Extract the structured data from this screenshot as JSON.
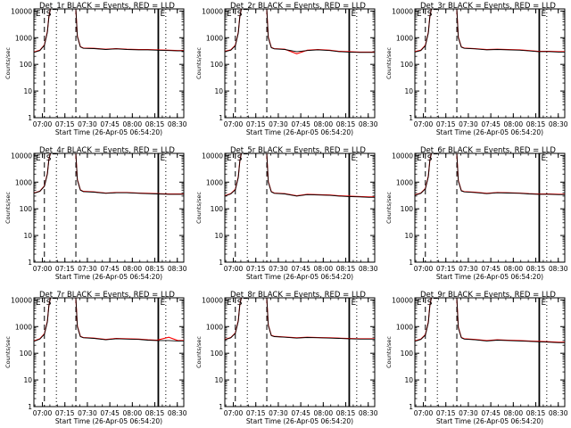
{
  "colors": {
    "background": "#ffffff",
    "axes": "#000000",
    "events": "#000000",
    "lld": "#ff0000"
  },
  "shared": {
    "ylabel": "Counts/sec",
    "xlabel": "Start Time (26-Apr-05 06:54:20)",
    "x_ticks": [
      "07:00",
      "07:15",
      "07:30",
      "07:45",
      "08:00",
      "08:15",
      "08:30"
    ],
    "y_ticks": [
      "1",
      "10",
      "100",
      "1000",
      "10000"
    ],
    "marker_labels": [
      "S",
      "E"
    ]
  },
  "chart_data": [
    {
      "type": "line",
      "title": "Det_1r BLACK = Events, RED = LLD",
      "ylim": [
        1,
        12000
      ],
      "y_scale": "log",
      "xlim_minutes": [
        0,
        100
      ],
      "x": [
        0,
        4,
        7,
        9,
        10,
        11,
        12,
        14,
        20,
        24,
        26,
        28,
        29,
        31,
        33,
        40,
        48,
        55,
        62,
        70,
        76,
        82,
        90,
        96,
        100
      ],
      "series": [
        {
          "name": "BLACK = Events",
          "values": [
            280,
            330,
            520,
            1600,
            6000,
            12000,
            12000,
            12000,
            12000,
            12000,
            12000,
            12000,
            1100,
            450,
            400,
            390,
            360,
            380,
            360,
            350,
            350,
            340,
            330,
            320,
            320
          ]
        },
        {
          "name": "RED = LLD",
          "values": [
            290,
            340,
            540,
            1700,
            6200,
            12000,
            12000,
            12000,
            12000,
            12000,
            12000,
            12000,
            1150,
            460,
            410,
            400,
            370,
            390,
            370,
            360,
            360,
            350,
            340,
            330,
            330
          ]
        }
      ],
      "markers": {
        "dashed": [
          7,
          28
        ],
        "dotted": [
          15,
          88
        ],
        "solid": [
          83
        ]
      }
    },
    {
      "type": "line",
      "title": "Det_2r BLACK = Events, RED = LLD",
      "ylim": [
        1,
        12000
      ],
      "y_scale": "log",
      "xlim_minutes": [
        0,
        100
      ],
      "x": [
        0,
        4,
        7,
        9,
        10,
        11,
        12,
        14,
        20,
        24,
        26,
        28,
        29,
        31,
        33,
        40,
        48,
        55,
        62,
        70,
        76,
        82,
        90,
        96,
        100
      ],
      "series": [
        {
          "name": "BLACK = Events",
          "values": [
            300,
            340,
            500,
            1500,
            6000,
            12000,
            12000,
            12000,
            12000,
            12000,
            12000,
            12000,
            1000,
            420,
            380,
            360,
            300,
            330,
            350,
            330,
            300,
            290,
            280,
            280,
            280
          ]
        },
        {
          "name": "RED = LLD",
          "values": [
            310,
            350,
            520,
            1600,
            6200,
            12000,
            12000,
            12000,
            12000,
            12000,
            12000,
            12000,
            1050,
            430,
            390,
            370,
            250,
            340,
            360,
            340,
            310,
            300,
            290,
            290,
            290
          ]
        }
      ],
      "markers": {
        "dashed": [
          7,
          28
        ],
        "dotted": [
          15,
          88
        ],
        "solid": [
          83
        ]
      }
    },
    {
      "type": "line",
      "title": "Det_3r BLACK = Events, RED = LLD",
      "ylim": [
        1,
        12000
      ],
      "y_scale": "log",
      "xlim_minutes": [
        0,
        100
      ],
      "x": [
        0,
        4,
        7,
        9,
        10,
        11,
        12,
        14,
        20,
        24,
        26,
        28,
        29,
        31,
        33,
        40,
        48,
        55,
        62,
        70,
        76,
        82,
        90,
        96,
        100
      ],
      "series": [
        {
          "name": "BLACK = Events",
          "values": [
            290,
            330,
            500,
            1500,
            6000,
            12000,
            12000,
            12000,
            12000,
            12000,
            12000,
            12000,
            1000,
            440,
            400,
            380,
            350,
            360,
            350,
            340,
            320,
            300,
            300,
            290,
            290
          ]
        },
        {
          "name": "RED = LLD",
          "values": [
            300,
            340,
            520,
            1600,
            6200,
            12000,
            12000,
            12000,
            12000,
            12000,
            12000,
            12000,
            1050,
            450,
            410,
            390,
            360,
            370,
            360,
            350,
            330,
            310,
            310,
            300,
            300
          ]
        }
      ],
      "markers": {
        "dashed": [
          7,
          28
        ],
        "dotted": [
          15,
          88
        ],
        "solid": [
          83
        ]
      }
    },
    {
      "type": "line",
      "title": "Det_4r BLACK = Events, RED = LLD",
      "ylim": [
        1,
        12000
      ],
      "y_scale": "log",
      "xlim_minutes": [
        0,
        100
      ],
      "x": [
        0,
        4,
        7,
        9,
        10,
        11,
        12,
        14,
        20,
        24,
        26,
        28,
        29,
        31,
        33,
        40,
        48,
        55,
        62,
        70,
        76,
        82,
        90,
        96,
        100
      ],
      "series": [
        {
          "name": "BLACK = Events",
          "values": [
            380,
            450,
            700,
            2000,
            7000,
            12000,
            12000,
            12000,
            12000,
            12000,
            12000,
            12000,
            1200,
            500,
            440,
            420,
            380,
            400,
            400,
            380,
            370,
            360,
            350,
            350,
            350
          ]
        },
        {
          "name": "RED = LLD",
          "values": [
            390,
            460,
            720,
            2100,
            7200,
            12000,
            12000,
            12000,
            12000,
            12000,
            12000,
            12000,
            1250,
            510,
            450,
            430,
            390,
            410,
            410,
            390,
            380,
            370,
            360,
            360,
            360
          ]
        }
      ],
      "markers": {
        "dashed": [
          7,
          28
        ],
        "dotted": [
          15,
          88
        ],
        "solid": [
          83
        ]
      }
    },
    {
      "type": "line",
      "title": "Det_5r BLACK = Events, RED = LLD",
      "ylim": [
        1,
        12000
      ],
      "y_scale": "log",
      "xlim_minutes": [
        0,
        100
      ],
      "x": [
        0,
        4,
        7,
        9,
        10,
        11,
        12,
        14,
        20,
        24,
        26,
        28,
        29,
        31,
        33,
        40,
        48,
        55,
        62,
        70,
        76,
        82,
        90,
        96,
        100
      ],
      "series": [
        {
          "name": "BLACK = Events",
          "values": [
            300,
            360,
            520,
            1500,
            6000,
            12000,
            12000,
            12000,
            12000,
            12000,
            12000,
            12000,
            1000,
            430,
            380,
            360,
            300,
            340,
            330,
            320,
            300,
            290,
            280,
            270,
            270
          ]
        },
        {
          "name": "RED = LLD",
          "values": [
            310,
            370,
            540,
            1600,
            6200,
            12000,
            12000,
            12000,
            12000,
            12000,
            12000,
            12000,
            1050,
            440,
            390,
            370,
            310,
            350,
            340,
            330,
            310,
            300,
            290,
            280,
            280
          ]
        }
      ],
      "markers": {
        "dashed": [
          7,
          28
        ],
        "dotted": [
          15,
          88
        ],
        "solid": [
          83
        ]
      }
    },
    {
      "type": "line",
      "title": "Det_6r BLACK = Events, RED = LLD",
      "ylim": [
        1,
        12000
      ],
      "y_scale": "log",
      "xlim_minutes": [
        0,
        100
      ],
      "x": [
        0,
        4,
        7,
        9,
        10,
        11,
        12,
        14,
        20,
        24,
        26,
        28,
        29,
        31,
        33,
        40,
        48,
        55,
        62,
        70,
        76,
        82,
        90,
        96,
        100
      ],
      "series": [
        {
          "name": "BLACK = Events",
          "values": [
            320,
            380,
            560,
            1600,
            6500,
            12000,
            12000,
            12000,
            12000,
            12000,
            12000,
            12000,
            1100,
            470,
            430,
            410,
            370,
            400,
            390,
            380,
            360,
            350,
            350,
            340,
            340
          ]
        },
        {
          "name": "RED = LLD",
          "values": [
            330,
            390,
            580,
            1700,
            6700,
            12000,
            12000,
            12000,
            12000,
            12000,
            12000,
            12000,
            1150,
            480,
            440,
            420,
            380,
            410,
            400,
            390,
            370,
            360,
            360,
            350,
            350
          ]
        }
      ],
      "markers": {
        "dashed": [
          7,
          28
        ],
        "dotted": [
          15,
          88
        ],
        "solid": [
          83
        ]
      }
    },
    {
      "type": "line",
      "title": "Det_7r BLACK = Events, RED = LLD",
      "ylim": [
        1,
        12000
      ],
      "y_scale": "log",
      "xlim_minutes": [
        0,
        100
      ],
      "x": [
        0,
        4,
        7,
        9,
        10,
        11,
        12,
        14,
        20,
        24,
        26,
        28,
        29,
        31,
        33,
        40,
        48,
        55,
        62,
        70,
        76,
        82,
        90,
        96,
        100
      ],
      "series": [
        {
          "name": "BLACK = Events",
          "values": [
            280,
            340,
            520,
            1500,
            6000,
            12000,
            12000,
            12000,
            12000,
            12000,
            12000,
            12000,
            1000,
            420,
            380,
            360,
            320,
            350,
            340,
            330,
            310,
            300,
            300,
            290,
            290
          ]
        },
        {
          "name": "RED = LLD",
          "values": [
            290,
            350,
            540,
            1600,
            6200,
            12000,
            12000,
            12000,
            12000,
            12000,
            12000,
            12000,
            1050,
            430,
            390,
            370,
            330,
            360,
            350,
            340,
            320,
            310,
            400,
            300,
            300
          ]
        }
      ],
      "markers": {
        "dashed": [
          7,
          28
        ],
        "dotted": [
          15,
          88
        ],
        "solid": [
          83
        ]
      }
    },
    {
      "type": "line",
      "title": "Det_8r BLACK = Events, RED = LLD",
      "ylim": [
        1,
        12000
      ],
      "y_scale": "log",
      "xlim_minutes": [
        0,
        100
      ],
      "x": [
        0,
        4,
        7,
        9,
        10,
        11,
        12,
        14,
        20,
        24,
        26,
        28,
        29,
        31,
        33,
        40,
        48,
        55,
        62,
        70,
        76,
        82,
        90,
        96,
        100
      ],
      "series": [
        {
          "name": "BLACK = Events",
          "values": [
            320,
            380,
            560,
            1600,
            6500,
            12000,
            12000,
            12000,
            12000,
            12000,
            12000,
            12000,
            1100,
            460,
            420,
            400,
            370,
            390,
            380,
            370,
            360,
            350,
            340,
            340,
            340
          ]
        },
        {
          "name": "RED = LLD",
          "values": [
            330,
            390,
            580,
            1700,
            6700,
            12000,
            12000,
            12000,
            12000,
            12000,
            12000,
            12000,
            1150,
            470,
            430,
            410,
            380,
            400,
            390,
            380,
            370,
            360,
            350,
            350,
            350
          ]
        }
      ],
      "markers": {
        "dashed": [
          7,
          28
        ],
        "dotted": [
          15,
          88
        ],
        "solid": [
          83
        ]
      }
    },
    {
      "type": "line",
      "title": "Det_9r BLACK = Events, RED = LLD",
      "ylim": [
        1,
        12000
      ],
      "y_scale": "log",
      "xlim_minutes": [
        0,
        100
      ],
      "x": [
        0,
        4,
        7,
        9,
        10,
        11,
        12,
        14,
        20,
        24,
        26,
        28,
        29,
        31,
        33,
        40,
        48,
        55,
        62,
        70,
        76,
        82,
        90,
        96,
        100
      ],
      "series": [
        {
          "name": "BLACK = Events",
          "values": [
            280,
            330,
            480,
            1400,
            6000,
            12000,
            12000,
            12000,
            12000,
            12000,
            12000,
            12000,
            900,
            380,
            340,
            320,
            290,
            310,
            300,
            290,
            280,
            270,
            260,
            250,
            250
          ]
        },
        {
          "name": "RED = LLD",
          "values": [
            290,
            340,
            500,
            1500,
            6200,
            12000,
            12000,
            12000,
            12000,
            12000,
            12000,
            12000,
            950,
            390,
            350,
            330,
            300,
            320,
            310,
            300,
            290,
            280,
            270,
            260,
            260
          ]
        }
      ],
      "markers": {
        "dashed": [
          7,
          28
        ],
        "dotted": [
          15,
          88
        ],
        "solid": [
          83
        ]
      }
    }
  ]
}
